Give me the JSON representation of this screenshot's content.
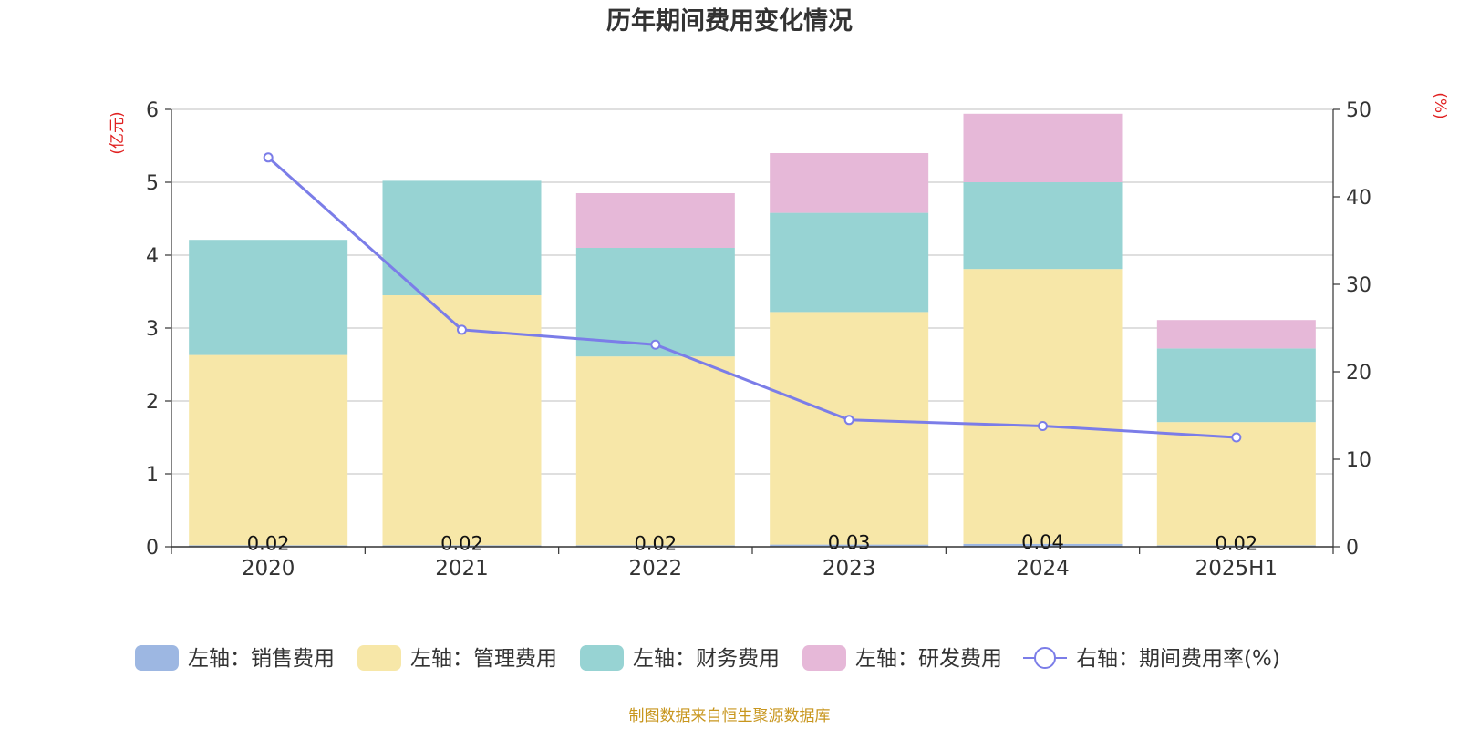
{
  "title": "历年期间费用变化情况",
  "source": "制图数据来自恒生聚源数据库",
  "colors": {
    "sales": "#9db7e2",
    "admin": "#f7e7a8",
    "finance": "#97d3d3",
    "rd": "#e6b8d8",
    "rate": "#7b7de8"
  },
  "chart_data": {
    "type": "bar",
    "stacked": true,
    "categories": [
      "2020",
      "2021",
      "2022",
      "2023",
      "2024",
      "2025H1"
    ],
    "left_axis": {
      "unit": "(亿元)",
      "ylim": [
        0,
        6
      ],
      "ticks": [
        0,
        1,
        2,
        3,
        4,
        5,
        6
      ]
    },
    "right_axis": {
      "unit": "(%)",
      "ylim": [
        0,
        50
      ],
      "ticks": [
        0,
        10,
        20,
        30,
        40,
        50
      ]
    },
    "series": [
      {
        "name": "左轴：销售费用",
        "key": "sales",
        "axis": "left",
        "type": "bar",
        "values": [
          0.02,
          0.02,
          0.02,
          0.03,
          0.04,
          0.02
        ],
        "labels": [
          "0.02",
          "0.02",
          "0.02",
          "0.03",
          "0.04",
          "0.02"
        ]
      },
      {
        "name": "左轴：管理费用",
        "key": "admin",
        "axis": "left",
        "type": "bar",
        "values": [
          2.61,
          3.43,
          2.59,
          3.19,
          3.77,
          1.69
        ]
      },
      {
        "name": "左轴：财务费用",
        "key": "finance",
        "axis": "left",
        "type": "bar",
        "values": [
          1.58,
          1.57,
          1.49,
          1.36,
          1.19,
          1.01
        ]
      },
      {
        "name": "左轴：研发费用",
        "key": "rd",
        "axis": "left",
        "type": "bar",
        "values": [
          0,
          0,
          0.75,
          0.82,
          0.94,
          0.39
        ]
      },
      {
        "name": "右轴：期间费用率(%)",
        "key": "rate",
        "axis": "right",
        "type": "line",
        "values": [
          44.5,
          24.8,
          23.1,
          14.5,
          13.8,
          12.5
        ]
      }
    ],
    "grid": true,
    "legend_position": "bottom"
  }
}
